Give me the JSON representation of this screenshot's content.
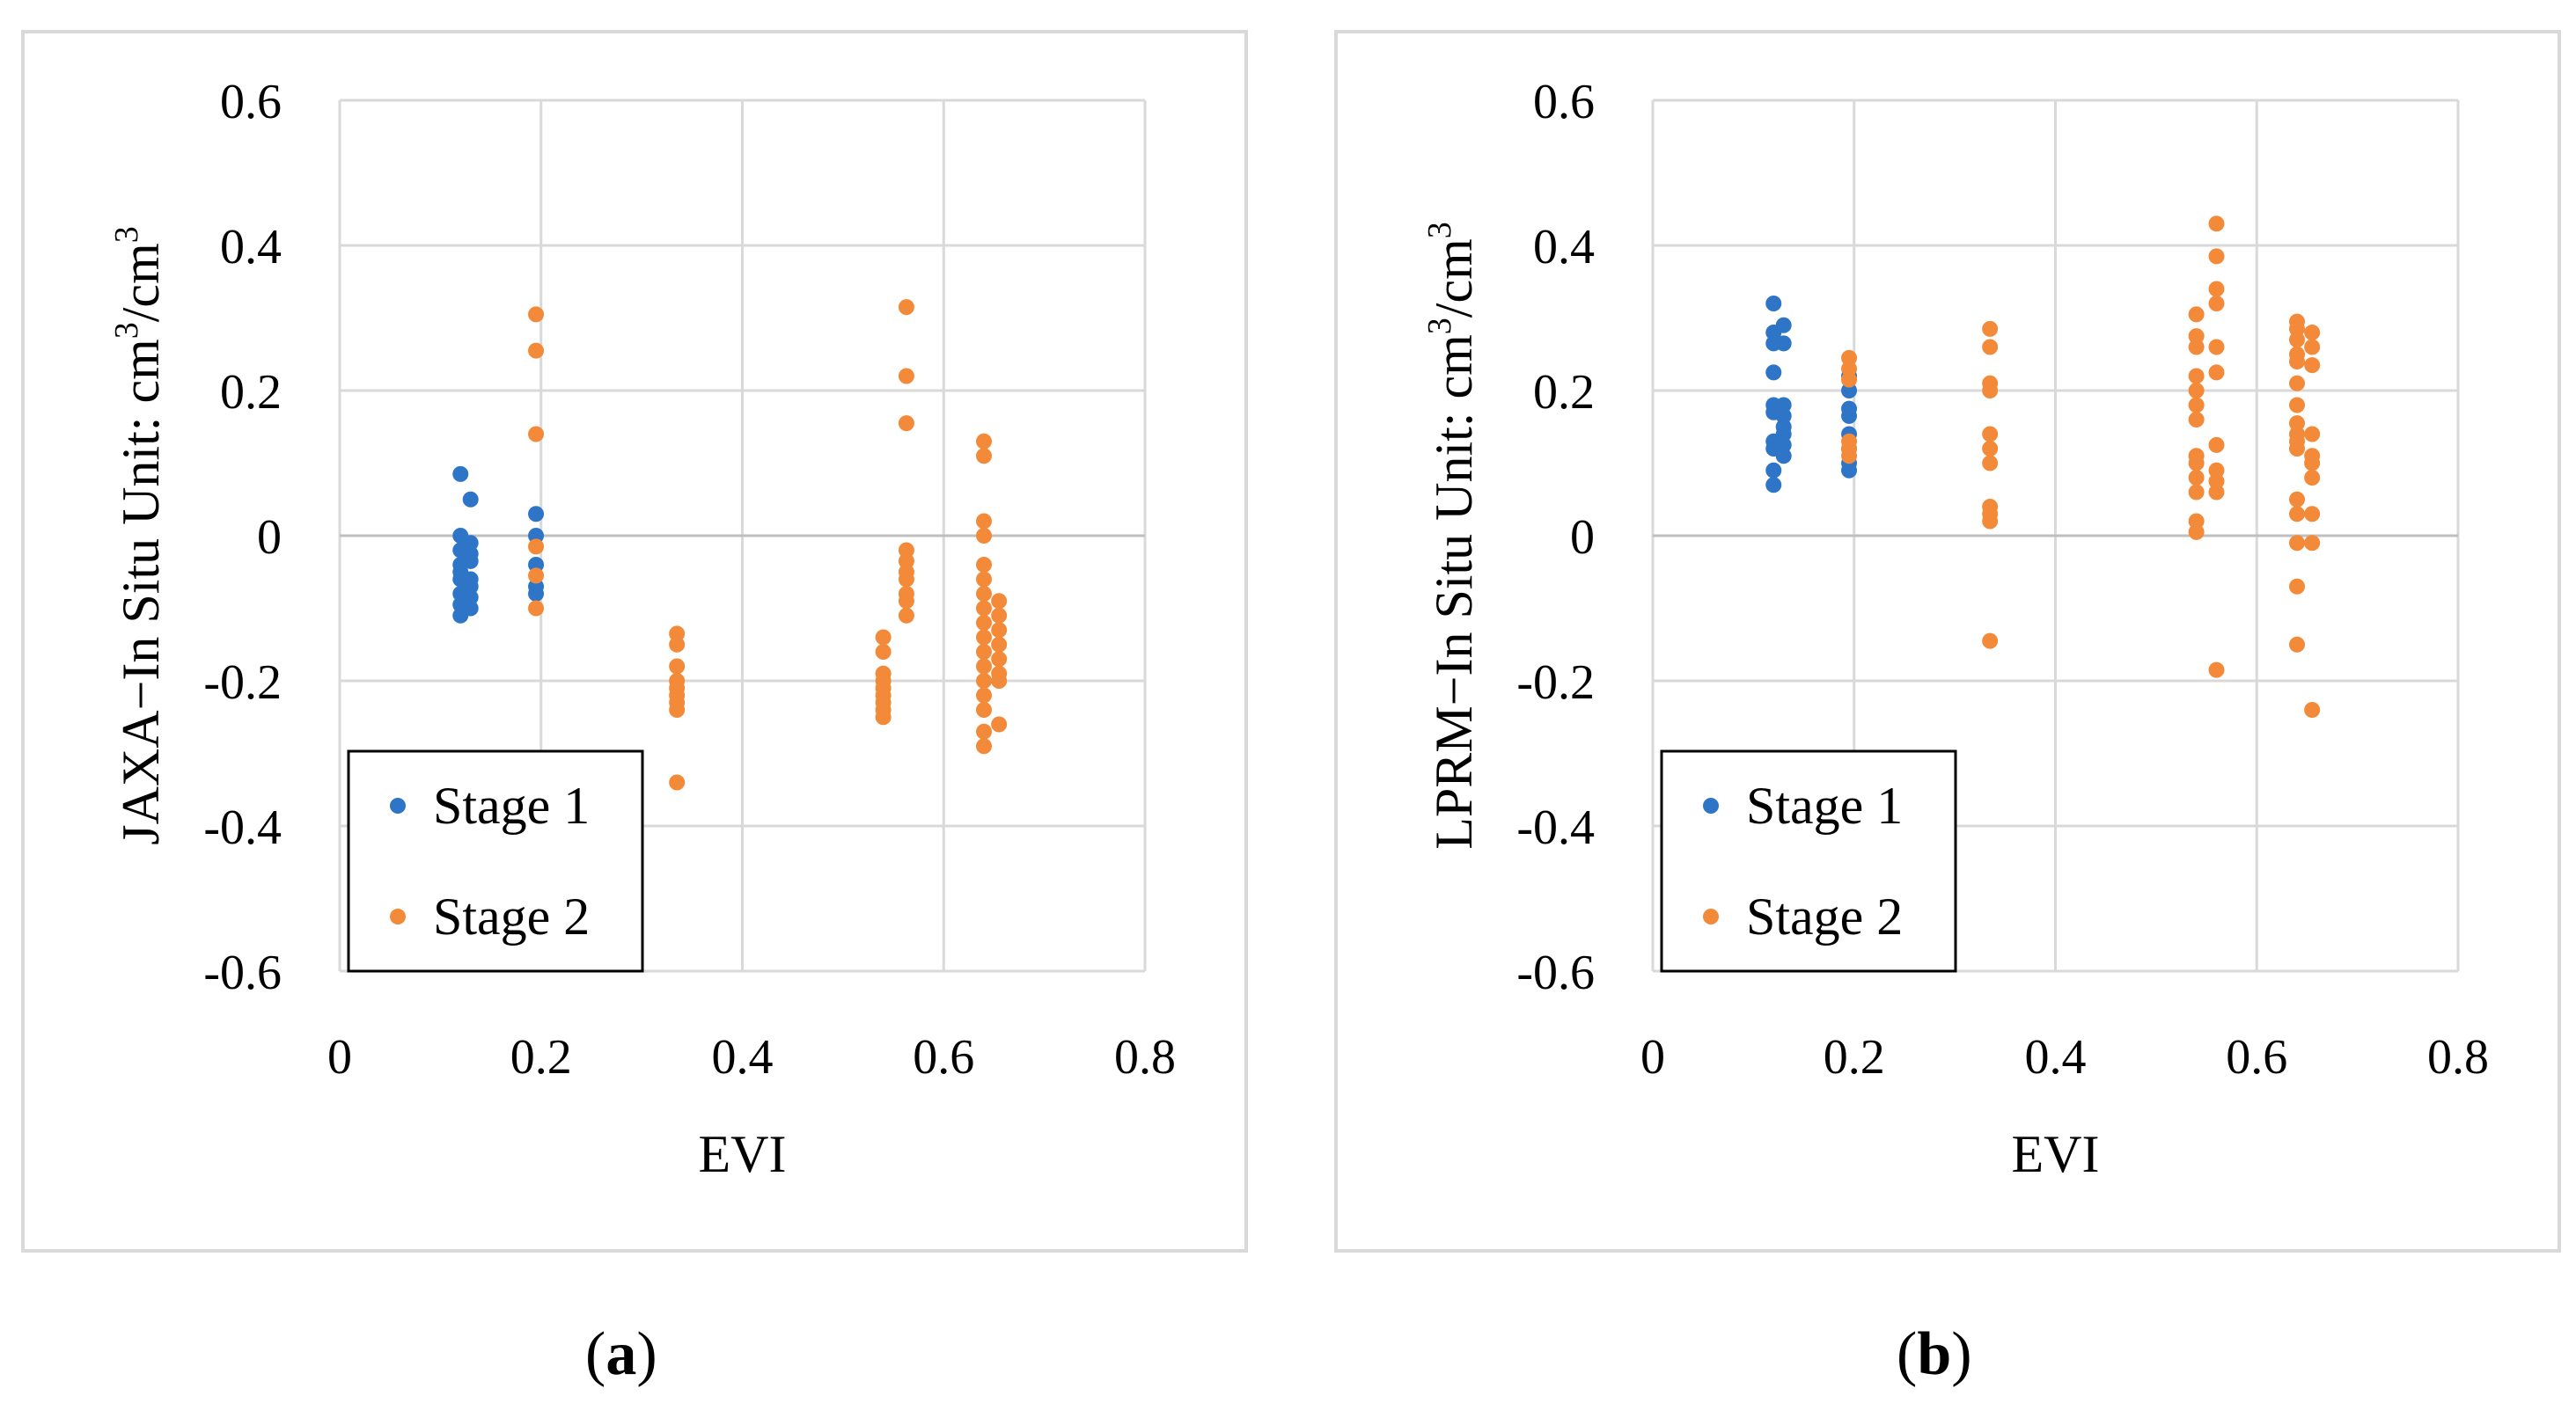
{
  "chart_data": [
    {
      "type": "scatter",
      "panel": "a",
      "caption_letter": "a",
      "xlabel": "EVI",
      "ylabel": "JAXA−In Situ   Unit: cm³/cm³",
      "ylabel_parts": [
        "JAXA−In Situ",
        "Unit: cm",
        "3",
        "/cm",
        "3"
      ],
      "xlim": [
        0,
        0.8
      ],
      "ylim": [
        -0.6,
        0.6
      ],
      "x_ticks": [
        "0",
        "0.2",
        "0.4",
        "0.6",
        "0.8"
      ],
      "y_ticks": [
        "0.6",
        "0.4",
        "0.2",
        "0",
        "-0.2",
        "-0.4",
        "-0.6"
      ],
      "legend": [
        "Stage 1",
        "Stage 2"
      ],
      "legend_position": "bottom-left",
      "colors": {
        "Stage 1": "#2e75c7",
        "Stage 2": "#f28a3a"
      },
      "series": [
        {
          "name": "Stage 1",
          "points": [
            [
              0.12,
              0.085
            ],
            [
              0.12,
              0.0
            ],
            [
              0.12,
              -0.02
            ],
            [
              0.12,
              -0.04
            ],
            [
              0.12,
              -0.05
            ],
            [
              0.12,
              -0.06
            ],
            [
              0.12,
              -0.08
            ],
            [
              0.12,
              -0.095
            ],
            [
              0.12,
              -0.11
            ],
            [
              0.13,
              0.05
            ],
            [
              0.13,
              -0.01
            ],
            [
              0.13,
              -0.025
            ],
            [
              0.13,
              -0.035
            ],
            [
              0.13,
              -0.06
            ],
            [
              0.13,
              -0.07
            ],
            [
              0.13,
              -0.085
            ],
            [
              0.13,
              -0.1
            ],
            [
              0.195,
              0.03
            ],
            [
              0.195,
              0.0
            ],
            [
              0.195,
              -0.04
            ],
            [
              0.195,
              -0.07
            ],
            [
              0.195,
              -0.08
            ]
          ]
        },
        {
          "name": "Stage 2",
          "points": [
            [
              0.195,
              0.305
            ],
            [
              0.195,
              0.255
            ],
            [
              0.195,
              0.14
            ],
            [
              0.195,
              -0.015
            ],
            [
              0.195,
              -0.055
            ],
            [
              0.195,
              -0.1
            ],
            [
              0.335,
              -0.135
            ],
            [
              0.335,
              -0.15
            ],
            [
              0.335,
              -0.18
            ],
            [
              0.335,
              -0.2
            ],
            [
              0.335,
              -0.21
            ],
            [
              0.335,
              -0.22
            ],
            [
              0.335,
              -0.23
            ],
            [
              0.335,
              -0.24
            ],
            [
              0.335,
              -0.34
            ],
            [
              0.54,
              -0.14
            ],
            [
              0.54,
              -0.16
            ],
            [
              0.54,
              -0.19
            ],
            [
              0.54,
              -0.2
            ],
            [
              0.54,
              -0.21
            ],
            [
              0.54,
              -0.22
            ],
            [
              0.54,
              -0.23
            ],
            [
              0.54,
              -0.24
            ],
            [
              0.54,
              -0.25
            ],
            [
              0.563,
              0.315
            ],
            [
              0.563,
              0.22
            ],
            [
              0.563,
              0.155
            ],
            [
              0.563,
              -0.02
            ],
            [
              0.563,
              -0.035
            ],
            [
              0.563,
              -0.05
            ],
            [
              0.563,
              -0.06
            ],
            [
              0.563,
              -0.08
            ],
            [
              0.563,
              -0.09
            ],
            [
              0.563,
              -0.11
            ],
            [
              0.64,
              0.13
            ],
            [
              0.64,
              0.11
            ],
            [
              0.64,
              0.02
            ],
            [
              0.64,
              0.0
            ],
            [
              0.64,
              -0.04
            ],
            [
              0.64,
              -0.06
            ],
            [
              0.64,
              -0.08
            ],
            [
              0.64,
              -0.1
            ],
            [
              0.64,
              -0.12
            ],
            [
              0.64,
              -0.14
            ],
            [
              0.64,
              -0.16
            ],
            [
              0.64,
              -0.18
            ],
            [
              0.64,
              -0.2
            ],
            [
              0.64,
              -0.22
            ],
            [
              0.64,
              -0.24
            ],
            [
              0.64,
              -0.27
            ],
            [
              0.64,
              -0.29
            ],
            [
              0.655,
              -0.09
            ],
            [
              0.655,
              -0.11
            ],
            [
              0.655,
              -0.13
            ],
            [
              0.655,
              -0.15
            ],
            [
              0.655,
              -0.17
            ],
            [
              0.655,
              -0.19
            ],
            [
              0.655,
              -0.2
            ],
            [
              0.655,
              -0.26
            ]
          ]
        }
      ]
    },
    {
      "type": "scatter",
      "panel": "b",
      "caption_letter": "b",
      "xlabel": "EVI",
      "ylabel": "LPRM−In Situ   Unit: cm³/cm³",
      "ylabel_parts": [
        "LPRM−In Situ",
        "Unit: cm",
        "3",
        "/cm",
        "3"
      ],
      "xlim": [
        0,
        0.8
      ],
      "ylim": [
        -0.6,
        0.6
      ],
      "x_ticks": [
        "0",
        "0.2",
        "0.4",
        "0.6",
        "0.8"
      ],
      "y_ticks": [
        "0.6",
        "0.4",
        "0.2",
        "0",
        "-0.2",
        "-0.4",
        "-0.6"
      ],
      "legend": [
        "Stage 1",
        "Stage 2"
      ],
      "legend_position": "bottom-left",
      "colors": {
        "Stage 1": "#2e75c7",
        "Stage 2": "#f28a3a"
      },
      "series": [
        {
          "name": "Stage 1",
          "points": [
            [
              0.12,
              0.32
            ],
            [
              0.12,
              0.28
            ],
            [
              0.12,
              0.265
            ],
            [
              0.12,
              0.225
            ],
            [
              0.12,
              0.18
            ],
            [
              0.12,
              0.17
            ],
            [
              0.12,
              0.13
            ],
            [
              0.12,
              0.12
            ],
            [
              0.12,
              0.09
            ],
            [
              0.12,
              0.07
            ],
            [
              0.13,
              0.29
            ],
            [
              0.13,
              0.265
            ],
            [
              0.13,
              0.18
            ],
            [
              0.13,
              0.165
            ],
            [
              0.13,
              0.15
            ],
            [
              0.13,
              0.14
            ],
            [
              0.13,
              0.125
            ],
            [
              0.13,
              0.11
            ],
            [
              0.195,
              0.22
            ],
            [
              0.195,
              0.2
            ],
            [
              0.195,
              0.175
            ],
            [
              0.195,
              0.165
            ],
            [
              0.195,
              0.14
            ],
            [
              0.195,
              0.12
            ],
            [
              0.195,
              0.1
            ],
            [
              0.195,
              0.09
            ]
          ]
        },
        {
          "name": "Stage 2",
          "points": [
            [
              0.195,
              0.245
            ],
            [
              0.195,
              0.23
            ],
            [
              0.195,
              0.215
            ],
            [
              0.195,
              0.13
            ],
            [
              0.195,
              0.12
            ],
            [
              0.195,
              0.11
            ],
            [
              0.335,
              0.285
            ],
            [
              0.335,
              0.26
            ],
            [
              0.335,
              0.21
            ],
            [
              0.335,
              0.2
            ],
            [
              0.335,
              0.14
            ],
            [
              0.335,
              0.12
            ],
            [
              0.335,
              0.1
            ],
            [
              0.335,
              0.04
            ],
            [
              0.335,
              0.03
            ],
            [
              0.335,
              0.02
            ],
            [
              0.335,
              -0.145
            ],
            [
              0.54,
              0.305
            ],
            [
              0.54,
              0.275
            ],
            [
              0.54,
              0.26
            ],
            [
              0.54,
              0.22
            ],
            [
              0.54,
              0.2
            ],
            [
              0.54,
              0.18
            ],
            [
              0.54,
              0.16
            ],
            [
              0.54,
              0.11
            ],
            [
              0.54,
              0.1
            ],
            [
              0.54,
              0.08
            ],
            [
              0.54,
              0.06
            ],
            [
              0.54,
              0.02
            ],
            [
              0.54,
              0.005
            ],
            [
              0.56,
              0.43
            ],
            [
              0.56,
              0.385
            ],
            [
              0.56,
              0.34
            ],
            [
              0.56,
              0.32
            ],
            [
              0.56,
              0.26
            ],
            [
              0.56,
              0.225
            ],
            [
              0.56,
              0.125
            ],
            [
              0.56,
              0.09
            ],
            [
              0.56,
              0.075
            ],
            [
              0.56,
              0.06
            ],
            [
              0.56,
              -0.185
            ],
            [
              0.64,
              0.295
            ],
            [
              0.64,
              0.285
            ],
            [
              0.64,
              0.27
            ],
            [
              0.64,
              0.25
            ],
            [
              0.64,
              0.24
            ],
            [
              0.64,
              0.21
            ],
            [
              0.64,
              0.18
            ],
            [
              0.64,
              0.155
            ],
            [
              0.64,
              0.14
            ],
            [
              0.64,
              0.13
            ],
            [
              0.64,
              0.12
            ],
            [
              0.64,
              0.05
            ],
            [
              0.64,
              0.03
            ],
            [
              0.64,
              -0.01
            ],
            [
              0.64,
              -0.07
            ],
            [
              0.64,
              -0.15
            ],
            [
              0.655,
              0.28
            ],
            [
              0.655,
              0.26
            ],
            [
              0.655,
              0.235
            ],
            [
              0.655,
              0.14
            ],
            [
              0.655,
              0.11
            ],
            [
              0.655,
              0.1
            ],
            [
              0.655,
              0.08
            ],
            [
              0.655,
              0.03
            ],
            [
              0.655,
              -0.01
            ],
            [
              0.655,
              -0.24
            ]
          ]
        }
      ]
    }
  ]
}
